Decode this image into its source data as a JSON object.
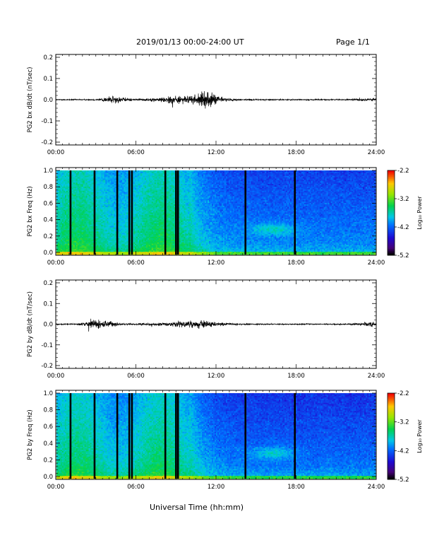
{
  "header": {
    "title": "2019/01/13  00:00-24:00 UT",
    "page": "Page 1/1"
  },
  "x_axis_title": "Universal Time (hh:mm)",
  "x_ticks": [
    "00:00",
    "06:00",
    "12:00",
    "18:00",
    "24:00"
  ],
  "colorbar": {
    "label": "Log₁₀ Power",
    "range": [
      -5.2,
      -2.2
    ],
    "ticks": [
      "-2.2",
      "-3.2",
      "-4.2",
      "-5.2"
    ]
  },
  "chart_data": [
    {
      "type": "line",
      "ylabel": "PG2 bx dB/dt (nT/sec)",
      "xlim": [
        0,
        24
      ],
      "ylim": [
        -0.2,
        0.2
      ],
      "yticks": [
        "0.2",
        "0.1",
        "0.0",
        "-0.1",
        "-0.2"
      ],
      "grid": false,
      "activity_bursts": [
        {
          "t": 4.3,
          "amp": 0.05
        },
        {
          "t": 8.8,
          "amp": 0.04
        },
        {
          "t": 10.8,
          "amp": 0.05
        },
        {
          "t": 11.6,
          "amp": 0.07
        },
        {
          "t": 23.3,
          "amp": 0.02
        }
      ]
    },
    {
      "type": "heatmap",
      "ylabel": "PG2 bx Freq (Hz)",
      "xlim": [
        0,
        24
      ],
      "ylim": [
        0.0,
        1.0
      ],
      "yticks": [
        "1.0",
        "0.8",
        "0.6",
        "0.4",
        "0.2",
        "0.0"
      ],
      "z_range": [
        -5.2,
        -2.2
      ],
      "data_gaps_hours": [
        1.1,
        2.9,
        4.6,
        5.5,
        5.7,
        8.2,
        9.0,
        9.15,
        14.2,
        17.9
      ]
    },
    {
      "type": "line",
      "ylabel": "PG2 by dB/dt (nT/sec)",
      "xlim": [
        0,
        24
      ],
      "ylim": [
        -0.2,
        0.2
      ],
      "yticks": [
        "0.2",
        "0.1",
        "0.0",
        "-0.1",
        "-0.2"
      ],
      "grid": false,
      "activity_bursts": [
        {
          "t": 3.0,
          "amp": 0.06
        },
        {
          "t": 3.8,
          "amp": 0.03
        },
        {
          "t": 10.0,
          "amp": 0.03
        },
        {
          "t": 11.4,
          "amp": 0.03
        },
        {
          "t": 23.4,
          "amp": 0.03
        }
      ]
    },
    {
      "type": "heatmap",
      "ylabel": "PG2 by Freq (Hz)",
      "xlim": [
        0,
        24
      ],
      "ylim": [
        0.0,
        1.0
      ],
      "yticks": [
        "1.0",
        "0.8",
        "0.6",
        "0.4",
        "0.2",
        "0.0"
      ],
      "z_range": [
        -5.2,
        -2.2
      ],
      "data_gaps_hours": [
        1.1,
        2.9,
        4.6,
        5.5,
        5.7,
        8.2,
        9.0,
        9.15,
        14.2,
        17.9
      ]
    }
  ]
}
